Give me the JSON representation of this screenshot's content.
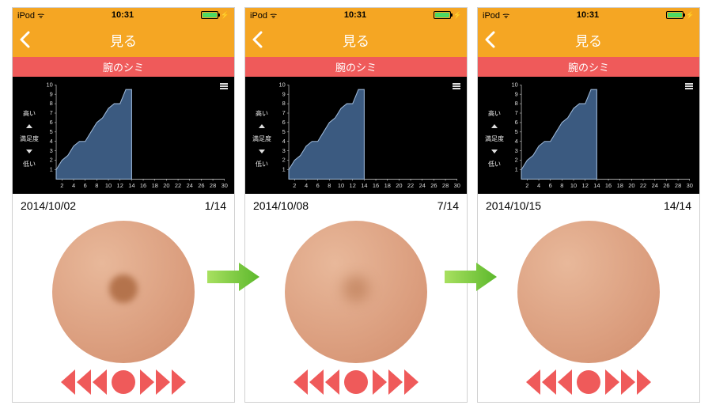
{
  "colors": {
    "navbar_bg": "#f5a623",
    "sub_banner_bg": "#ef5a5a",
    "chart_bg": "#000000",
    "chart_area_fill": "#3b5a80",
    "chart_area_stroke": "#9db8d8",
    "chart_grid": "#333333",
    "chart_text": "#dddddd",
    "control_color": "#ef5a5a",
    "battery_fill": "#4cd964",
    "arrow_start": "#a8e060",
    "arrow_end": "#5cb82c",
    "skin_light": "#e8b89a",
    "skin_dark": "#d89878",
    "spot_color": "#b4734c"
  },
  "statusbar": {
    "device": "iPod",
    "time": "10:31",
    "battery_pct": 90
  },
  "navbar": {
    "title": "見る",
    "back_visible": true
  },
  "sub_banner": "腕のシミ",
  "chart": {
    "type": "area",
    "y_label_top": "高い",
    "y_label_mid": "満足度",
    "y_label_bottom": "低い",
    "x_ticks": [
      2,
      4,
      6,
      8,
      10,
      12,
      14,
      16,
      18,
      20,
      22,
      24,
      26,
      28,
      30
    ],
    "y_ticks": [
      1,
      2,
      3,
      4,
      5,
      6,
      7,
      8,
      9,
      10
    ],
    "xlim": [
      1,
      30
    ],
    "ylim": [
      0,
      10
    ],
    "data": [
      {
        "x": 1,
        "y": 1
      },
      {
        "x": 2,
        "y": 2
      },
      {
        "x": 3,
        "y": 2.5
      },
      {
        "x": 4,
        "y": 3.5
      },
      {
        "x": 5,
        "y": 4
      },
      {
        "x": 6,
        "y": 4
      },
      {
        "x": 7,
        "y": 5
      },
      {
        "x": 8,
        "y": 6
      },
      {
        "x": 9,
        "y": 6.5
      },
      {
        "x": 10,
        "y": 7.5
      },
      {
        "x": 11,
        "y": 8
      },
      {
        "x": 12,
        "y": 8
      },
      {
        "x": 13,
        "y": 9.5
      },
      {
        "x": 14,
        "y": 9.5
      }
    ],
    "tick_fontsize": 7
  },
  "screens": [
    {
      "date": "2014/10/02",
      "counter": "1/14",
      "spot_opacity": 1.0,
      "spot_size": 36,
      "spot_blur": 4
    },
    {
      "date": "2014/10/08",
      "counter": "7/14",
      "spot_opacity": 0.55,
      "spot_size": 34,
      "spot_blur": 8
    },
    {
      "date": "2014/10/15",
      "counter": "14/14",
      "spot_opacity": 0.0,
      "spot_size": 30,
      "spot_blur": 12
    }
  ]
}
